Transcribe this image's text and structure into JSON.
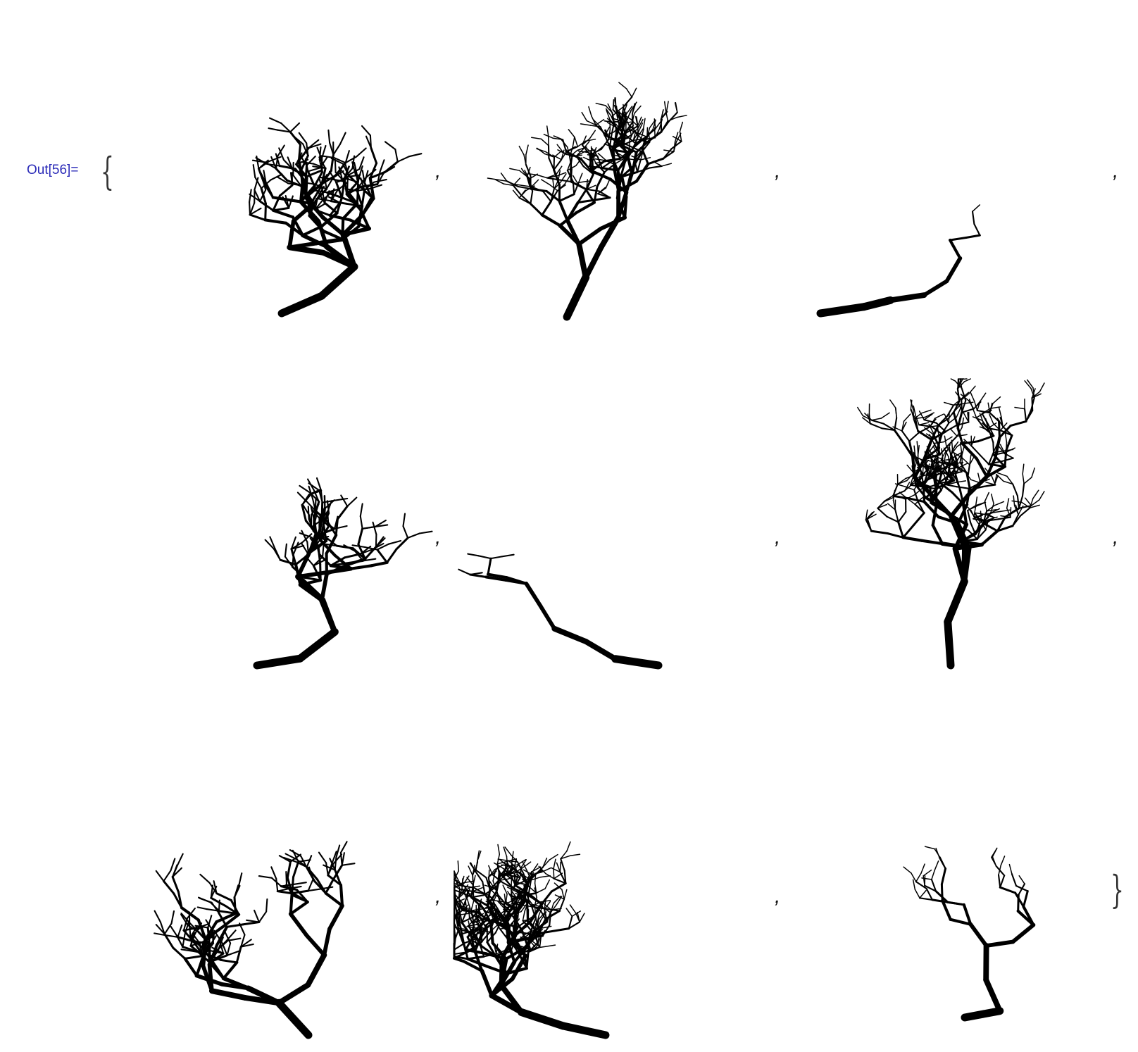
{
  "cell": {
    "label": "Out[56]=",
    "open_brace": "{",
    "close_brace": "}",
    "separator": ",",
    "label_color": "#2b2bb8"
  },
  "graphics": {
    "count": 9,
    "rows": 3,
    "columns": 3,
    "stroke_color": "#000000",
    "content": "randomly branching tree drawings"
  }
}
